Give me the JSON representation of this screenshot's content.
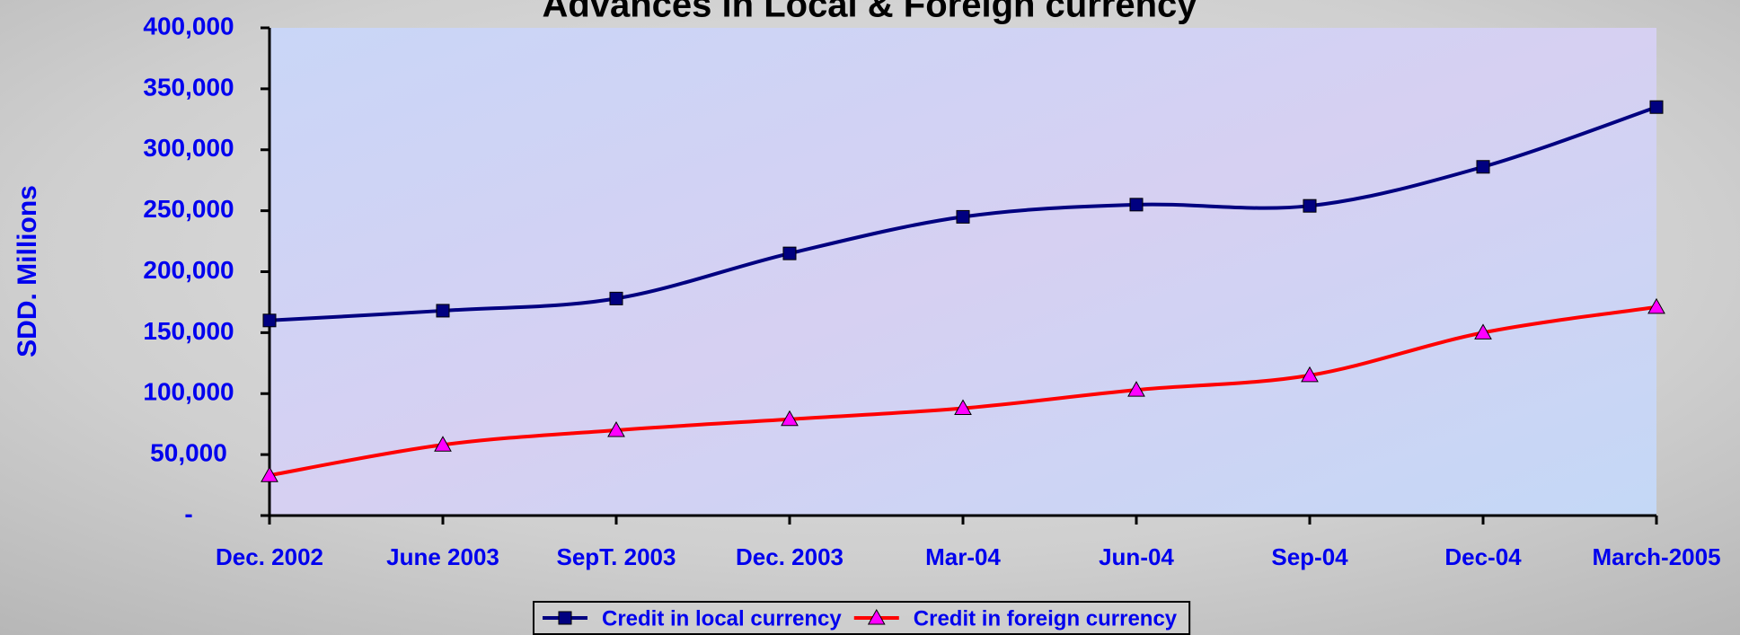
{
  "chart_data": {
    "type": "line",
    "title": "Advances in Local & Foreign currency",
    "y_label": "SDD. Millions",
    "categories": [
      "Dec. 2002",
      "June 2003",
      "SepT. 2003",
      "Dec. 2003",
      "Mar-04",
      "Jun-04",
      "Sep-04",
      "Dec-04",
      "March-2005"
    ],
    "series": [
      {
        "name": "Credit in local currency",
        "color": "#000080",
        "marker": "square",
        "marker_color": "#000080",
        "values": [
          160000,
          168000,
          178000,
          215000,
          245000,
          255000,
          254000,
          286000,
          335000
        ]
      },
      {
        "name": "Credit in foreign currency",
        "color": "#ff0000",
        "marker": "triangle",
        "marker_color": "#ff00ff",
        "values": [
          33000,
          58000,
          70000,
          79000,
          88000,
          103000,
          115000,
          150000,
          171000
        ]
      }
    ],
    "ylim": [
      0,
      400000
    ],
    "yticks": [
      {
        "value": 0,
        "label": "-"
      },
      {
        "value": 50000,
        "label": "50,000"
      },
      {
        "value": 100000,
        "label": "100,000"
      },
      {
        "value": 150000,
        "label": "150,000"
      },
      {
        "value": 200000,
        "label": "200,000"
      },
      {
        "value": 250000,
        "label": "250,000"
      },
      {
        "value": 300000,
        "label": "300,000"
      },
      {
        "value": 350000,
        "label": "350,000"
      },
      {
        "value": 400000,
        "label": "400,000"
      }
    ],
    "smooth": true,
    "legend": "bottom"
  }
}
